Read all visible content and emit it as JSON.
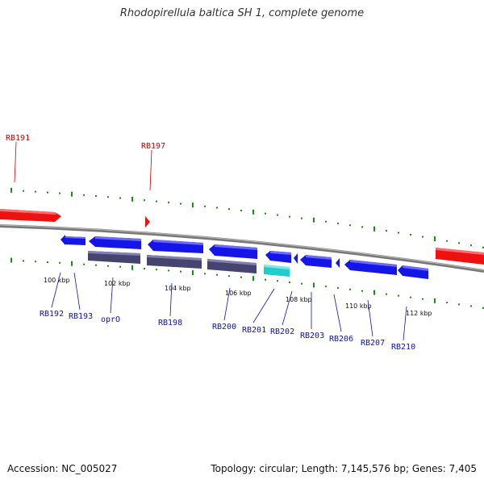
{
  "title": "Rhodopirellula baltica SH 1, complete genome",
  "footer": {
    "accession": "Accession: NC_005027",
    "topology": "Topology: circular; Length: 7,145,576 bp; Genes: 7,405"
  },
  "colors": {
    "backbone": "#888888",
    "tick": "#1a8a1a",
    "highlight_gene": "#ee1111",
    "highlight_label": "#cc0000",
    "forward_gene": "#1515e8",
    "reverse_gene": "#1515e8",
    "rna_gene": "#44446e",
    "other_feature": "#22cccc",
    "label_text": "#1111aa"
  },
  "scale_labels": [
    "100 kbp",
    "102 kbp",
    "104 kbp",
    "106 kbp",
    "108 kbp",
    "110 kbp",
    "112 kbp"
  ],
  "highlight_genes": [
    "RB191",
    "RB197"
  ],
  "gene_labels": [
    "RB192",
    "RB193",
    "oprO",
    "RB198",
    "RB200",
    "RB201",
    "RB202",
    "RB203",
    "RB206",
    "RB207",
    "RB210"
  ]
}
